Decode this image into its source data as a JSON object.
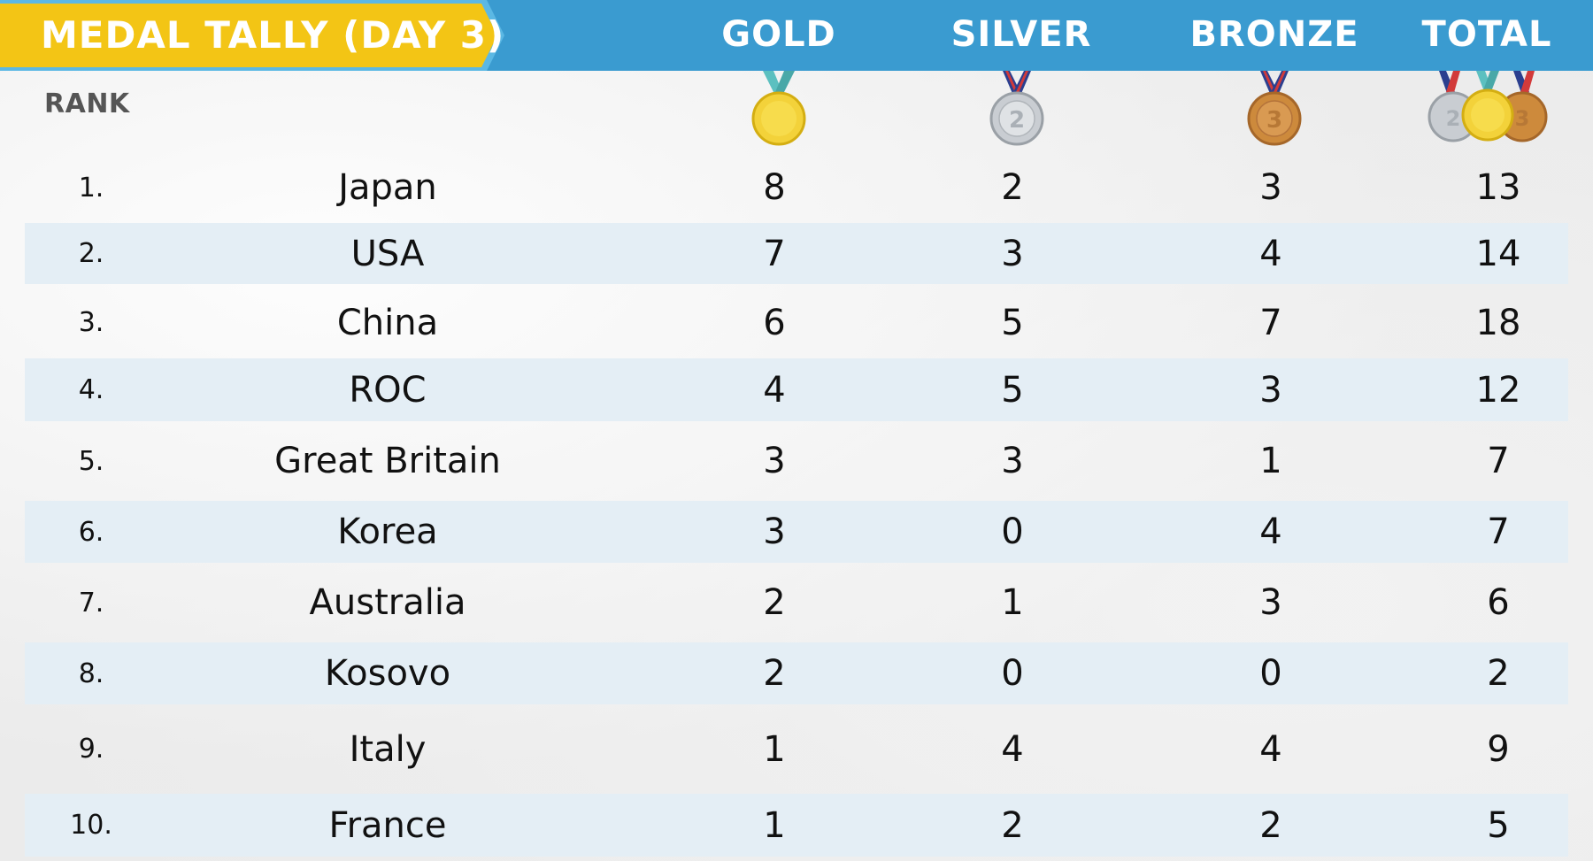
{
  "title": "MEDAL TALLY (DAY 3)",
  "columns": {
    "gold": "GOLD",
    "silver": "SILVER",
    "bronze": "BRONZE",
    "total": "TOTAL"
  },
  "rank_label": "RANK",
  "colors": {
    "header": "#3a9bd0",
    "banner": "#f3c515",
    "row_shade": "#e4eef5",
    "gold": "#f3d23a",
    "silver": "#c9cdd2",
    "bronze": "#cd8a3c"
  },
  "chart_data": {
    "type": "table",
    "title": "MEDAL TALLY (DAY 3)",
    "headers": [
      "RANK",
      "",
      "GOLD",
      "SILVER",
      "BRONZE",
      "TOTAL"
    ],
    "rows": [
      {
        "rank": "1.",
        "country": "Japan",
        "gold": 8,
        "silver": 2,
        "bronze": 3,
        "total": 13
      },
      {
        "rank": "2.",
        "country": "USA",
        "gold": 7,
        "silver": 3,
        "bronze": 4,
        "total": 14
      },
      {
        "rank": "3.",
        "country": "China",
        "gold": 6,
        "silver": 5,
        "bronze": 7,
        "total": 18
      },
      {
        "rank": "4.",
        "country": "ROC",
        "gold": 4,
        "silver": 5,
        "bronze": 3,
        "total": 12
      },
      {
        "rank": "5.",
        "country": "Great Britain",
        "gold": 3,
        "silver": 3,
        "bronze": 1,
        "total": 7
      },
      {
        "rank": "6.",
        "country": "Korea",
        "gold": 3,
        "silver": 0,
        "bronze": 4,
        "total": 7
      },
      {
        "rank": "7.",
        "country": "Australia",
        "gold": 2,
        "silver": 1,
        "bronze": 3,
        "total": 6
      },
      {
        "rank": "8.",
        "country": "Kosovo",
        "gold": 2,
        "silver": 0,
        "bronze": 0,
        "total": 2
      },
      {
        "rank": "9.",
        "country": "Italy",
        "gold": 1,
        "silver": 4,
        "bronze": 4,
        "total": 9
      },
      {
        "rank": "10.",
        "country": "France",
        "gold": 1,
        "silver": 2,
        "bronze": 2,
        "total": 5
      }
    ]
  },
  "icons": {
    "gold": "gold-medal-icon",
    "silver": "silver-medal-icon",
    "bronze": "bronze-medal-icon",
    "total": "medal-group-icon"
  }
}
